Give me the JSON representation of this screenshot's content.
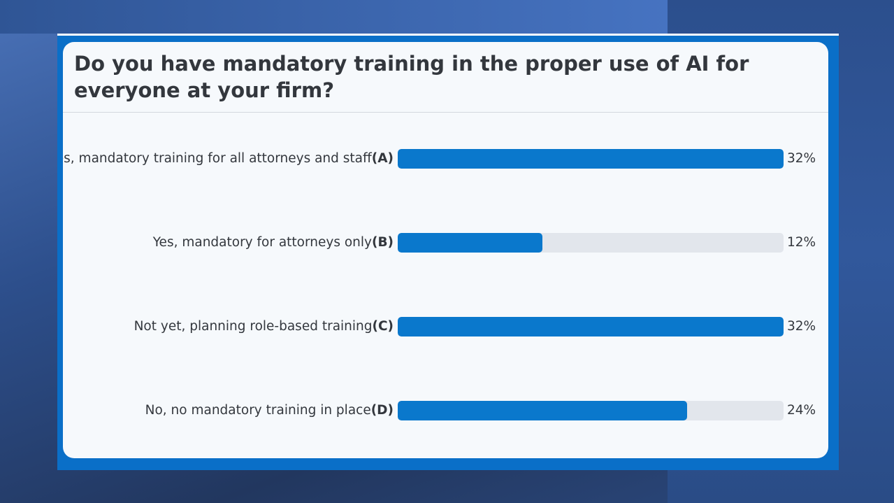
{
  "chart_data": {
    "type": "bar",
    "title": "Do you have mandatory training in the proper use of AI for everyone at your firm?",
    "categories": [
      "Yes, mandatory training for all attorneys and staff",
      "Yes, mandatory for attorneys only",
      "Not yet, planning role-based training",
      "No, no mandatory training in place"
    ],
    "option_letters": [
      "(A)",
      "(B)",
      "(C)",
      "(D)"
    ],
    "values": [
      32,
      12,
      32,
      24
    ],
    "value_labels": [
      "32%",
      "12%",
      "32%",
      "24%"
    ],
    "color": "#0a78cc",
    "track_color": "#e2e6ec"
  }
}
